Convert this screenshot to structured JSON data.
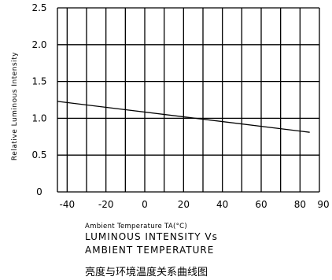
{
  "chart_data": {
    "type": "line",
    "ylabel": "Relative Luminous Intensity",
    "xlabel": "Ambient Temperature TA(°C)",
    "title_lines": [
      "LUMINOUS INTENSITY Vs",
      "AMBIENT TEMPERATURE"
    ],
    "caption_cn": "亮度与环境温度关系曲线图",
    "xlim": [
      -45,
      90
    ],
    "ylim": [
      0,
      2.5
    ],
    "x_ticks": [
      -40,
      -20,
      0,
      20,
      40,
      60,
      80,
      90
    ],
    "x_tick_labels": [
      "-40",
      "-20",
      "0",
      "20",
      "40",
      "60",
      "80",
      "90"
    ],
    "y_ticks": [
      0,
      0.5,
      1.0,
      1.5,
      2.0,
      2.5
    ],
    "y_tick_labels": [
      "0",
      "0.5",
      "1.0",
      "1.5",
      "2.0",
      "2.5"
    ],
    "x_grid": [
      -45,
      -40,
      -30,
      -20,
      -10,
      0,
      10,
      20,
      30,
      40,
      50,
      60,
      70,
      80,
      90
    ],
    "grid": true,
    "series": [
      {
        "x": [
          -45,
          85
        ],
        "y": [
          1.23,
          0.81
        ]
      }
    ]
  }
}
